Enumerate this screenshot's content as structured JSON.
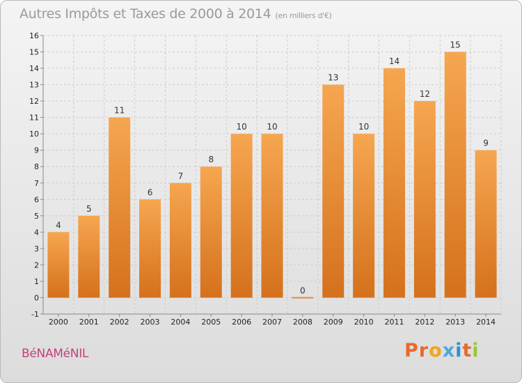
{
  "title": "Autres Impôts et Taxes de 2000 à 2014",
  "title_unit": "(en milliers d'€)",
  "commune": "BéNAMéNIL",
  "logo": {
    "text": "Proxiti",
    "letter_colors": [
      "#e8692c",
      "#e8692c",
      "#f2a31b",
      "#4aa8dc",
      "#2e8fd6",
      "#e8692c",
      "#96c83c"
    ]
  },
  "colors": {
    "bar_top": "#f6a650",
    "bar_bottom": "#d5711c",
    "grid": "#cccccc",
    "axis": "#888888"
  },
  "chart_data": {
    "type": "bar",
    "categories": [
      "2000",
      "2001",
      "2002",
      "2003",
      "2004",
      "2005",
      "2006",
      "2007",
      "2008",
      "2009",
      "2010",
      "2011",
      "2012",
      "2013",
      "2014"
    ],
    "values": [
      4,
      5,
      11,
      6,
      7,
      8,
      10,
      10,
      0,
      13,
      10,
      14,
      12,
      15,
      9
    ],
    "ylim": [
      -1,
      16
    ],
    "yticks": [
      "-1",
      "0",
      "1",
      "2",
      "3",
      "4",
      "5",
      "6",
      "7",
      "8",
      "9",
      "10",
      "11",
      "12",
      "13",
      "14",
      "15",
      "16"
    ],
    "grid": true
  }
}
